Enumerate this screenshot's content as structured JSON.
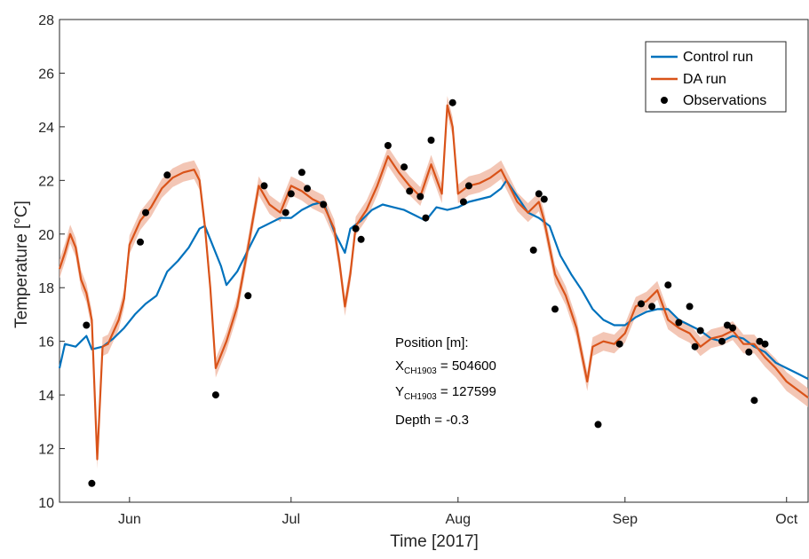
{
  "chart_data": {
    "type": "line",
    "xlabel": "Time [2017]",
    "ylabel": "Temperature [°C]",
    "x_type": "date",
    "xlim": [
      "2017-05-19",
      "2017-10-05"
    ],
    "ylim": [
      10,
      28
    ],
    "y_ticks": [
      10,
      12,
      14,
      16,
      18,
      20,
      22,
      24,
      26,
      28
    ],
    "x_ticks": [
      {
        "date": "2017-06-01",
        "label": "Jun"
      },
      {
        "date": "2017-07-01",
        "label": "Jul"
      },
      {
        "date": "2017-08-01",
        "label": "Aug"
      },
      {
        "date": "2017-09-01",
        "label": "Sep"
      },
      {
        "date": "2017-10-01",
        "label": "Oct"
      }
    ],
    "grid": false,
    "legend_position": "top-right",
    "series": [
      {
        "name": "Control run",
        "kind": "line",
        "color": "#0072BD",
        "points": [
          [
            "2017-05-19",
            15.0
          ],
          [
            "2017-05-20",
            15.9
          ],
          [
            "2017-05-22",
            15.8
          ],
          [
            "2017-05-24",
            16.2
          ],
          [
            "2017-05-25",
            15.7
          ],
          [
            "2017-05-27",
            15.8
          ],
          [
            "2017-05-29",
            16.1
          ],
          [
            "2017-05-31",
            16.5
          ],
          [
            "2017-06-02",
            17.0
          ],
          [
            "2017-06-04",
            17.4
          ],
          [
            "2017-06-06",
            17.7
          ],
          [
            "2017-06-08",
            18.6
          ],
          [
            "2017-06-10",
            19.0
          ],
          [
            "2017-06-12",
            19.5
          ],
          [
            "2017-06-14",
            20.2
          ],
          [
            "2017-06-15",
            20.3
          ],
          [
            "2017-06-16",
            19.8
          ],
          [
            "2017-06-18",
            18.8
          ],
          [
            "2017-06-19",
            18.1
          ],
          [
            "2017-06-21",
            18.6
          ],
          [
            "2017-06-23",
            19.4
          ],
          [
            "2017-06-25",
            20.2
          ],
          [
            "2017-06-27",
            20.4
          ],
          [
            "2017-06-29",
            20.6
          ],
          [
            "2017-07-01",
            20.6
          ],
          [
            "2017-07-03",
            20.9
          ],
          [
            "2017-07-05",
            21.1
          ],
          [
            "2017-07-07",
            21.2
          ],
          [
            "2017-07-09",
            20.1
          ],
          [
            "2017-07-11",
            19.3
          ],
          [
            "2017-07-12",
            20.2
          ],
          [
            "2017-07-14",
            20.5
          ],
          [
            "2017-07-16",
            20.9
          ],
          [
            "2017-07-18",
            21.1
          ],
          [
            "2017-07-20",
            21.0
          ],
          [
            "2017-07-22",
            20.9
          ],
          [
            "2017-07-24",
            20.7
          ],
          [
            "2017-07-26",
            20.5
          ],
          [
            "2017-07-28",
            21.0
          ],
          [
            "2017-07-30",
            20.9
          ],
          [
            "2017-08-01",
            21.0
          ],
          [
            "2017-08-03",
            21.2
          ],
          [
            "2017-08-05",
            21.3
          ],
          [
            "2017-08-07",
            21.4
          ],
          [
            "2017-08-09",
            21.7
          ],
          [
            "2017-08-10",
            22.0
          ],
          [
            "2017-08-12",
            21.4
          ],
          [
            "2017-08-14",
            20.8
          ],
          [
            "2017-08-16",
            20.6
          ],
          [
            "2017-08-18",
            20.3
          ],
          [
            "2017-08-20",
            19.2
          ],
          [
            "2017-08-22",
            18.5
          ],
          [
            "2017-08-24",
            17.9
          ],
          [
            "2017-08-26",
            17.2
          ],
          [
            "2017-08-28",
            16.8
          ],
          [
            "2017-08-30",
            16.6
          ],
          [
            "2017-09-01",
            16.6
          ],
          [
            "2017-09-03",
            16.9
          ],
          [
            "2017-09-05",
            17.1
          ],
          [
            "2017-09-07",
            17.2
          ],
          [
            "2017-09-09",
            17.2
          ],
          [
            "2017-09-11",
            16.8
          ],
          [
            "2017-09-13",
            16.6
          ],
          [
            "2017-09-15",
            16.4
          ],
          [
            "2017-09-17",
            16.1
          ],
          [
            "2017-09-19",
            16.0
          ],
          [
            "2017-09-21",
            16.2
          ],
          [
            "2017-09-23",
            16.1
          ],
          [
            "2017-09-25",
            15.8
          ],
          [
            "2017-09-27",
            15.6
          ],
          [
            "2017-09-29",
            15.2
          ],
          [
            "2017-10-01",
            15.0
          ],
          [
            "2017-10-03",
            14.8
          ],
          [
            "2017-10-05",
            14.6
          ]
        ]
      },
      {
        "name": "DA run",
        "kind": "line",
        "color": "#D95319",
        "band_color": "#F0B8A2",
        "points": [
          [
            "2017-05-19",
            18.7
          ],
          [
            "2017-05-20",
            19.3
          ],
          [
            "2017-05-21",
            20.0
          ],
          [
            "2017-05-22",
            19.5
          ],
          [
            "2017-05-23",
            18.3
          ],
          [
            "2017-05-24",
            17.8
          ],
          [
            "2017-05-25",
            16.8
          ],
          [
            "2017-05-26",
            11.6
          ],
          [
            "2017-05-27",
            15.8
          ],
          [
            "2017-05-28",
            15.9
          ],
          [
            "2017-05-30",
            16.8
          ],
          [
            "2017-05-31",
            17.6
          ],
          [
            "2017-06-01",
            19.6
          ],
          [
            "2017-06-03",
            20.5
          ],
          [
            "2017-06-05",
            21.0
          ],
          [
            "2017-06-07",
            21.7
          ],
          [
            "2017-06-09",
            22.1
          ],
          [
            "2017-06-11",
            22.3
          ],
          [
            "2017-06-13",
            22.4
          ],
          [
            "2017-06-14",
            22.0
          ],
          [
            "2017-06-15",
            20.3
          ],
          [
            "2017-06-16",
            18.0
          ],
          [
            "2017-06-17",
            15.0
          ],
          [
            "2017-06-19",
            16.0
          ],
          [
            "2017-06-21",
            17.3
          ],
          [
            "2017-06-23",
            19.5
          ],
          [
            "2017-06-25",
            21.8
          ],
          [
            "2017-06-27",
            21.1
          ],
          [
            "2017-06-29",
            20.8
          ],
          [
            "2017-07-01",
            21.8
          ],
          [
            "2017-07-03",
            21.6
          ],
          [
            "2017-07-05",
            21.3
          ],
          [
            "2017-07-07",
            21.1
          ],
          [
            "2017-07-09",
            20.2
          ],
          [
            "2017-07-10",
            18.9
          ],
          [
            "2017-07-11",
            17.3
          ],
          [
            "2017-07-12",
            18.5
          ],
          [
            "2017-07-13",
            20.3
          ],
          [
            "2017-07-15",
            20.9
          ],
          [
            "2017-07-17",
            21.8
          ],
          [
            "2017-07-19",
            22.9
          ],
          [
            "2017-07-21",
            22.3
          ],
          [
            "2017-07-23",
            21.8
          ],
          [
            "2017-07-25",
            21.4
          ],
          [
            "2017-07-27",
            22.6
          ],
          [
            "2017-07-29",
            21.5
          ],
          [
            "2017-07-30",
            24.8
          ],
          [
            "2017-07-31",
            24.0
          ],
          [
            "2017-08-01",
            21.5
          ],
          [
            "2017-08-03",
            21.8
          ],
          [
            "2017-08-05",
            21.9
          ],
          [
            "2017-08-07",
            22.1
          ],
          [
            "2017-08-09",
            22.4
          ],
          [
            "2017-08-10",
            22.0
          ],
          [
            "2017-08-12",
            21.2
          ],
          [
            "2017-08-14",
            20.8
          ],
          [
            "2017-08-16",
            21.2
          ],
          [
            "2017-08-17",
            20.5
          ],
          [
            "2017-08-19",
            18.5
          ],
          [
            "2017-08-21",
            17.7
          ],
          [
            "2017-08-23",
            16.5
          ],
          [
            "2017-08-25",
            14.5
          ],
          [
            "2017-08-26",
            15.8
          ],
          [
            "2017-08-28",
            16.0
          ],
          [
            "2017-08-30",
            15.9
          ],
          [
            "2017-09-01",
            16.3
          ],
          [
            "2017-09-03",
            17.3
          ],
          [
            "2017-09-05",
            17.5
          ],
          [
            "2017-09-07",
            17.9
          ],
          [
            "2017-09-09",
            16.8
          ],
          [
            "2017-09-11",
            16.5
          ],
          [
            "2017-09-13",
            16.3
          ],
          [
            "2017-09-15",
            15.8
          ],
          [
            "2017-09-17",
            16.1
          ],
          [
            "2017-09-19",
            16.2
          ],
          [
            "2017-09-21",
            16.4
          ],
          [
            "2017-09-23",
            15.9
          ],
          [
            "2017-09-25",
            15.9
          ],
          [
            "2017-09-27",
            15.4
          ],
          [
            "2017-09-29",
            15.0
          ],
          [
            "2017-10-01",
            14.5
          ],
          [
            "2017-10-03",
            14.2
          ],
          [
            "2017-10-05",
            13.9
          ]
        ]
      },
      {
        "name": "Observations",
        "kind": "scatter",
        "color": "#000000",
        "points": [
          [
            "2017-05-24",
            16.6
          ],
          [
            "2017-05-25",
            10.7
          ],
          [
            "2017-06-03",
            19.7
          ],
          [
            "2017-06-04",
            20.8
          ],
          [
            "2017-06-08",
            22.2
          ],
          [
            "2017-06-17",
            14.0
          ],
          [
            "2017-06-23",
            17.7
          ],
          [
            "2017-06-26",
            21.8
          ],
          [
            "2017-06-30",
            20.8
          ],
          [
            "2017-07-01",
            21.5
          ],
          [
            "2017-07-03",
            22.3
          ],
          [
            "2017-07-04",
            21.7
          ],
          [
            "2017-07-07",
            21.1
          ],
          [
            "2017-07-13",
            20.2
          ],
          [
            "2017-07-14",
            19.8
          ],
          [
            "2017-07-19",
            23.3
          ],
          [
            "2017-07-22",
            22.5
          ],
          [
            "2017-07-23",
            21.6
          ],
          [
            "2017-07-25",
            21.4
          ],
          [
            "2017-07-26",
            20.6
          ],
          [
            "2017-07-27",
            23.5
          ],
          [
            "2017-07-31",
            24.9
          ],
          [
            "2017-08-02",
            21.2
          ],
          [
            "2017-08-03",
            21.8
          ],
          [
            "2017-08-15",
            19.4
          ],
          [
            "2017-08-16",
            21.5
          ],
          [
            "2017-08-17",
            21.3
          ],
          [
            "2017-08-19",
            17.2
          ],
          [
            "2017-08-27",
            12.9
          ],
          [
            "2017-08-31",
            15.9
          ],
          [
            "2017-09-04",
            17.4
          ],
          [
            "2017-09-06",
            17.3
          ],
          [
            "2017-09-09",
            18.1
          ],
          [
            "2017-09-11",
            16.7
          ],
          [
            "2017-09-13",
            17.3
          ],
          [
            "2017-09-14",
            15.8
          ],
          [
            "2017-09-15",
            16.4
          ],
          [
            "2017-09-19",
            16.0
          ],
          [
            "2017-09-20",
            16.6
          ],
          [
            "2017-09-21",
            16.5
          ],
          [
            "2017-09-24",
            15.6
          ],
          [
            "2017-09-25",
            13.8
          ],
          [
            "2017-09-26",
            16.0
          ],
          [
            "2017-09-27",
            15.9
          ]
        ]
      }
    ],
    "annotation": {
      "title": "Position [m]:",
      "x_label": "X",
      "x_sub": "CH1903",
      "x_value": " = 504600",
      "y_label": "Y",
      "y_sub": "CH1903",
      "y_value": " = 127599",
      "depth": "Depth = -0.3"
    }
  }
}
